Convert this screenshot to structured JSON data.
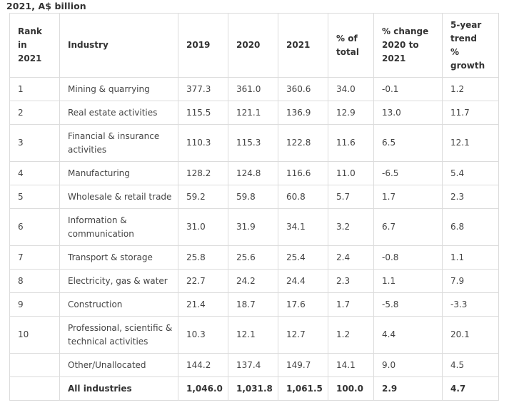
{
  "caption": "2021, A$ billion",
  "headers": {
    "rank": [
      "Rank",
      "in",
      "2021"
    ],
    "industry": "Industry",
    "y2019": "2019",
    "y2020": "2020",
    "y2021": "2021",
    "pct_total": [
      "% of",
      "total"
    ],
    "pct_change": [
      "% change",
      "2020 to",
      "2021"
    ],
    "trend": [
      "5-year",
      "trend",
      "%",
      "growth"
    ]
  },
  "rows": [
    {
      "rank": "1",
      "industry": [
        "Mining & quarrying"
      ],
      "y2019": "377.3",
      "y2020": "361.0",
      "y2021": "360.6",
      "pct_total": "34.0",
      "pct_change": "-0.1",
      "trend": "1.2"
    },
    {
      "rank": "2",
      "industry": [
        "Real estate activities"
      ],
      "y2019": "115.5",
      "y2020": "121.1",
      "y2021": "136.9",
      "pct_total": "12.9",
      "pct_change": "13.0",
      "trend": "11.7"
    },
    {
      "rank": "3",
      "industry": [
        "Financial & insurance",
        "activities"
      ],
      "y2019": "110.3",
      "y2020": "115.3",
      "y2021": "122.8",
      "pct_total": "11.6",
      "pct_change": "6.5",
      "trend": "12.1"
    },
    {
      "rank": "4",
      "industry": [
        "Manufacturing"
      ],
      "y2019": "128.2",
      "y2020": "124.8",
      "y2021": "116.6",
      "pct_total": "11.0",
      "pct_change": "-6.5",
      "trend": "5.4"
    },
    {
      "rank": "5",
      "industry": [
        "Wholesale & retail trade"
      ],
      "y2019": "59.2",
      "y2020": "59.8",
      "y2021": "60.8",
      "pct_total": "5.7",
      "pct_change": "1.7",
      "trend": "2.3"
    },
    {
      "rank": "6",
      "industry": [
        "Information &",
        "communication"
      ],
      "y2019": "31.0",
      "y2020": "31.9",
      "y2021": "34.1",
      "pct_total": "3.2",
      "pct_change": "6.7",
      "trend": "6.8"
    },
    {
      "rank": "7",
      "industry": [
        "Transport & storage"
      ],
      "y2019": "25.8",
      "y2020": "25.6",
      "y2021": "25.4",
      "pct_total": "2.4",
      "pct_change": "-0.8",
      "trend": "1.1"
    },
    {
      "rank": "8",
      "industry": [
        "Electricity, gas & water"
      ],
      "y2019": "22.7",
      "y2020": "24.2",
      "y2021": "24.4",
      "pct_total": "2.3",
      "pct_change": "1.1",
      "trend": "7.9"
    },
    {
      "rank": "9",
      "industry": [
        "Construction"
      ],
      "y2019": "21.4",
      "y2020": "18.7",
      "y2021": "17.6",
      "pct_total": "1.7",
      "pct_change": "-5.8",
      "trend": "-3.3"
    },
    {
      "rank": "10",
      "industry": [
        "Professional, scientific &",
        "technical activities"
      ],
      "y2019": "10.3",
      "y2020": "12.1",
      "y2021": "12.7",
      "pct_total": "1.2",
      "pct_change": "4.4",
      "trend": "20.1"
    },
    {
      "rank": "",
      "industry": [
        "Other/Unallocated"
      ],
      "y2019": "144.2",
      "y2020": "137.4",
      "y2021": "149.7",
      "pct_total": "14.1",
      "pct_change": "9.0",
      "trend": "4.5"
    }
  ],
  "total": {
    "rank": "",
    "industry": "All industries",
    "y2019": "1,046.0",
    "y2020": "1,031.8",
    "y2021": "1,061.5",
    "pct_total": "100.0",
    "pct_change": "2.9",
    "trend": "4.7"
  }
}
